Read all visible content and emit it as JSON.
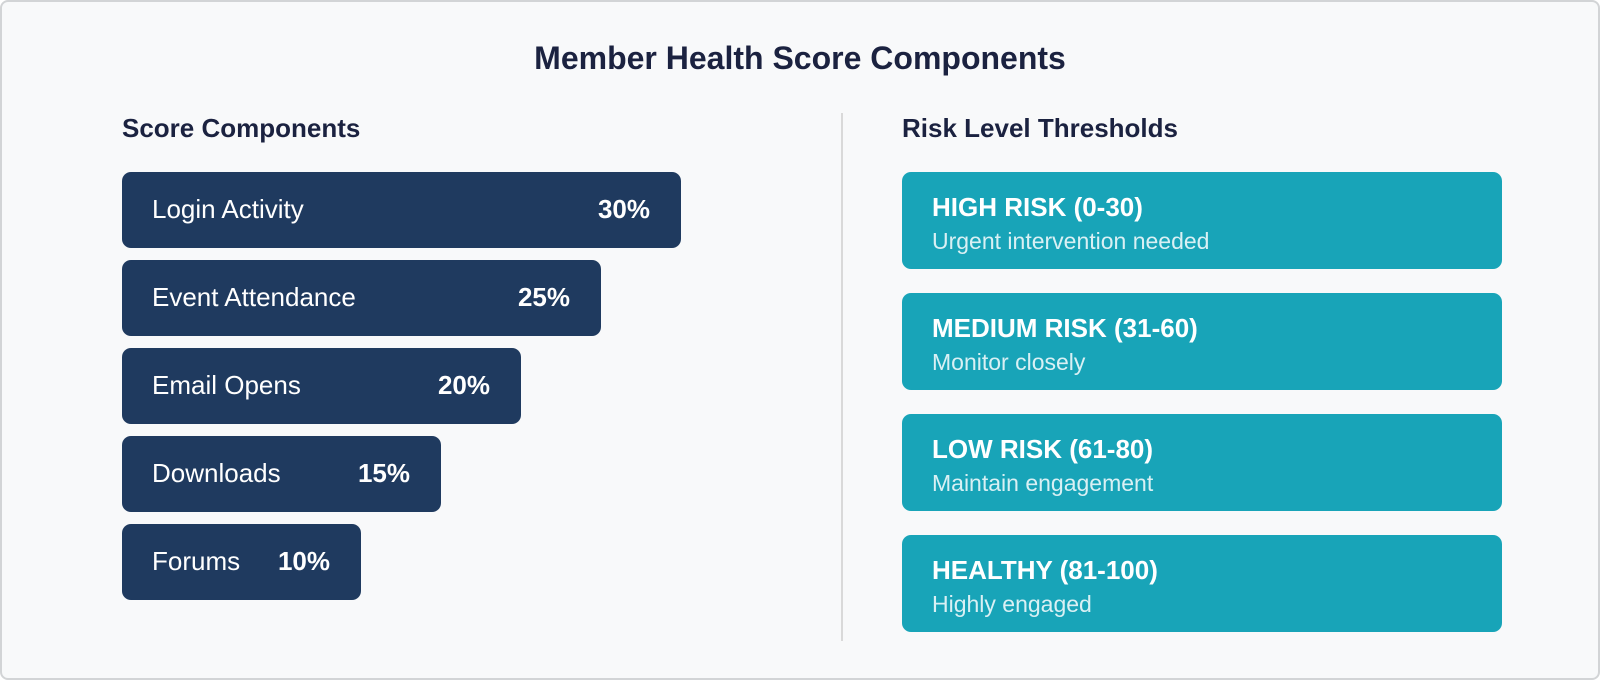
{
  "title": "Member Health Score Components",
  "left": {
    "heading": "Score Components",
    "bars": [
      {
        "label": "Login Activity",
        "pct_label": "30%"
      },
      {
        "label": "Event Attendance",
        "pct_label": "25%"
      },
      {
        "label": "Email Opens",
        "pct_label": "20%"
      },
      {
        "label": "Downloads",
        "pct_label": "15%"
      },
      {
        "label": "Forums",
        "pct_label": "10%"
      }
    ]
  },
  "right": {
    "heading": "Risk Level Thresholds",
    "levels": [
      {
        "title": "HIGH RISK (0-30)",
        "subtitle": "Urgent intervention needed"
      },
      {
        "title": "MEDIUM RISK (31-60)",
        "subtitle": "Monitor closely"
      },
      {
        "title": "LOW RISK (61-80)",
        "subtitle": "Maintain engagement"
      },
      {
        "title": "HEALTHY (81-100)",
        "subtitle": "Highly engaged"
      }
    ]
  },
  "colors": {
    "bar_navy": "#1f3a5f",
    "level_teal": "#18a4b8",
    "heading_navy": "#1b2240",
    "background": "#f8f9fa",
    "border": "#d2d4d6",
    "divider": "#d9d9d9"
  },
  "chart_data": {
    "type": "bar",
    "orientation": "horizontal",
    "title": "Member Health Score Components",
    "categories": [
      "Login Activity",
      "Event Attendance",
      "Email Opens",
      "Downloads",
      "Forums"
    ],
    "values": [
      30,
      25,
      20,
      15,
      10
    ],
    "unit": "%",
    "xlim": [
      0,
      30
    ],
    "grid": false,
    "legend": false,
    "annotations": [
      {
        "label": "HIGH RISK",
        "range": [
          0,
          30
        ],
        "note": "Urgent intervention needed"
      },
      {
        "label": "MEDIUM RISK",
        "range": [
          31,
          60
        ],
        "note": "Monitor closely"
      },
      {
        "label": "LOW RISK",
        "range": [
          61,
          80
        ],
        "note": "Maintain engagement"
      },
      {
        "label": "HEALTHY",
        "range": [
          81,
          100
        ],
        "note": "Highly engaged"
      }
    ]
  }
}
